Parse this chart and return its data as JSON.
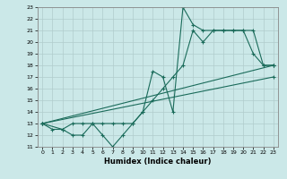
{
  "xlabel": "Humidex (Indice chaleur)",
  "ylabel": "",
  "xlim": [
    -0.5,
    23.5
  ],
  "ylim": [
    11,
    23
  ],
  "xticks": [
    0,
    1,
    2,
    3,
    4,
    5,
    6,
    7,
    8,
    9,
    10,
    11,
    12,
    13,
    14,
    15,
    16,
    17,
    18,
    19,
    20,
    21,
    22,
    23
  ],
  "yticks": [
    11,
    12,
    13,
    14,
    15,
    16,
    17,
    18,
    19,
    20,
    21,
    22,
    23
  ],
  "bg_color": "#cbe8e8",
  "grid_color": "#b0cccc",
  "line_color": "#1a6b5a",
  "lines": [
    {
      "x": [
        0,
        1,
        2,
        3,
        4,
        5,
        6,
        7,
        8,
        9,
        10,
        11,
        12,
        13,
        14,
        15,
        16,
        17,
        18,
        19,
        20,
        21,
        22,
        23
      ],
      "y": [
        13,
        12.5,
        12.5,
        12,
        12,
        13,
        12,
        11,
        12,
        13,
        14,
        17.5,
        17,
        14,
        23,
        21.5,
        21,
        21,
        21,
        21,
        21,
        19,
        18,
        18
      ]
    },
    {
      "x": [
        0,
        2,
        3,
        4,
        5,
        6,
        7,
        8,
        9,
        10,
        11,
        12,
        13,
        14,
        15,
        16,
        17,
        18,
        19,
        20,
        21,
        22,
        23
      ],
      "y": [
        13,
        12.5,
        13,
        13,
        13,
        13,
        13,
        13,
        13,
        14,
        15,
        16,
        17,
        18,
        21,
        20,
        21,
        21,
        21,
        21,
        21,
        18,
        18
      ]
    },
    {
      "x": [
        0,
        23
      ],
      "y": [
        13,
        17
      ]
    },
    {
      "x": [
        0,
        23
      ],
      "y": [
        13,
        18
      ]
    }
  ]
}
